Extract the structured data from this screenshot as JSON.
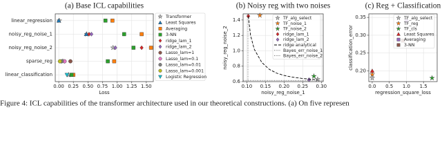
{
  "chart_data": [
    {
      "type": "scatter",
      "title": "(a) Base ICL capabilities",
      "xlabel": "Loss",
      "categories": [
        "linear_regression",
        "noisy_reg_noise_1",
        "noisy_reg_noise_2",
        "sparse_reg",
        "linear_classification"
      ],
      "xlim": [
        -0.06,
        1.62
      ],
      "xticks": [
        {
          "value": 0,
          "label": "0.00"
        },
        0.25,
        {
          "value": 0.5,
          "label": "0.50"
        },
        0.75,
        {
          "value": 1,
          "label": "1.00"
        },
        1.25,
        {
          "value": 1.5,
          "label": "1.50"
        }
      ],
      "grid": true,
      "legend": "outside right",
      "series": [
        {
          "name": "Transformer",
          "color": "#bbbbbb",
          "marker": "star",
          "values": [
            0.01,
            0.48,
            0.93,
            0.07,
            0.17
          ]
        },
        {
          "name": "Least Squares",
          "color": "#1f77b4",
          "marker": "triangle-up",
          "values": [
            0.0,
            0.47,
            null,
            null,
            0.21
          ]
        },
        {
          "name": "Averaging",
          "color": "#ff7f0e",
          "marker": "square",
          "values": [
            0.92,
            1.42,
            1.58,
            0.95,
            0.25
          ]
        },
        {
          "name": "3-NN",
          "color": "#2ca02c",
          "marker": "square",
          "values": [
            0.8,
            1.12,
            1.28,
            0.84,
            0.22
          ]
        },
        {
          "name": "ridge_lam_1",
          "color": "#d62728",
          "marker": "diamond",
          "values": [
            null,
            0.52,
            1.42,
            null,
            null
          ]
        },
        {
          "name": "ridge_lam_2",
          "color": "#9467bd",
          "marker": "diamond",
          "values": [
            null,
            0.56,
            0.97,
            null,
            null
          ]
        },
        {
          "name": "Lasso_lam=1",
          "color": "#8c564b",
          "marker": "circle",
          "values": [
            null,
            null,
            null,
            0.2,
            null
          ]
        },
        {
          "name": "Lasso_lam=0.1",
          "color": "#e377c2",
          "marker": "circle",
          "values": [
            null,
            null,
            null,
            0.1,
            null
          ]
        },
        {
          "name": "Lasso_lam=0.01",
          "color": "#7f7f7f",
          "marker": "circle",
          "values": [
            null,
            null,
            null,
            0.05,
            null
          ]
        },
        {
          "name": "Lasso_lam=0.001",
          "color": "#bcbd22",
          "marker": "circle",
          "values": [
            null,
            null,
            null,
            0.02,
            null
          ]
        },
        {
          "name": "Logistic Regression",
          "color": "#17becf",
          "marker": "triangle-down",
          "values": [
            null,
            null,
            null,
            null,
            0.14
          ]
        }
      ]
    },
    {
      "type": "scatter",
      "title": "(b) Noisy reg with two noises",
      "xlabel": "noisy_reg_noise_1",
      "ylabel": "noisy_reg_noise_2",
      "xlim": [
        0.09,
        0.305
      ],
      "xticks": [
        {
          "value": 0.1,
          "label": "0.10"
        },
        0.15,
        {
          "value": 0.2,
          "label": "0.20"
        },
        0.25,
        {
          "value": 0.3,
          "label": "0.30"
        }
      ],
      "ylim": [
        0.6,
        1.48
      ],
      "yticks": [
        0.6,
        0.8,
        {
          "value": 1,
          "label": "1.0"
        },
        1.2,
        1.4
      ],
      "grid": true,
      "legend": "upper right",
      "series": [
        {
          "name": "TF_alg_select",
          "color": "#bbbbbb",
          "marker": "star",
          "x": [
            0.29
          ],
          "y": [
            0.63
          ]
        },
        {
          "name": "TF_noise_1",
          "color": "#ff7f0e",
          "marker": "star",
          "x": [
            0.135
          ],
          "y": [
            1.46
          ]
        },
        {
          "name": "TF_noise_2",
          "color": "#2ca02c",
          "marker": "star",
          "x": [
            0.28
          ],
          "y": [
            0.67
          ]
        },
        {
          "name": "ridge_lam_1",
          "color": "#d62728",
          "marker": "diamond",
          "x": [
            0.104
          ],
          "y": [
            1.45
          ]
        },
        {
          "name": "ridge_lam_2",
          "color": "#9467bd",
          "marker": "diamond",
          "x": [
            0.267
          ],
          "y": [
            0.625
          ]
        },
        {
          "name": "ridge analytical",
          "color": "#000000",
          "linestyle": "dashed",
          "x": [
            0.104,
            0.11,
            0.12,
            0.14,
            0.16,
            0.18,
            0.2,
            0.22,
            0.25,
            0.29
          ],
          "y": [
            1.45,
            1.2,
            1.02,
            0.85,
            0.76,
            0.71,
            0.68,
            0.66,
            0.64,
            0.625
          ]
        },
        {
          "name": "Bayes_err_noise_1",
          "color": "#555555",
          "linestyle": "dotted",
          "xline": 0.103
        },
        {
          "name": "Bayes_err_noise_2",
          "color": "#555555",
          "linestyle": "dotted",
          "yline": 0.615
        }
      ]
    },
    {
      "type": "scatter",
      "title": "(c) Reg + Classification",
      "xlabel": "regression_square_loss",
      "ylabel": "classification_error",
      "xlim": [
        -0.1,
        1.9
      ],
      "xticks": [
        {
          "value": 0,
          "label": "0.0"
        },
        0.5,
        {
          "value": 1,
          "label": "1.0"
        },
        1.5
      ],
      "ylim": [
        0.17,
        0.36
      ],
      "yticks": [
        {
          "value": 0.2,
          "label": "0.20"
        },
        0.25,
        {
          "value": 0.3,
          "label": "0.30"
        },
        0.35
      ],
      "grid": true,
      "legend": "upper right",
      "series": [
        {
          "name": "TF_alg_select",
          "color": "#bbbbbb",
          "marker": "star",
          "x": [
            0.0
          ],
          "y": [
            0.18
          ]
        },
        {
          "name": "TF_reg",
          "color": "#ff7f0e",
          "marker": "star",
          "x": [
            0.0
          ],
          "y": [
            0.19
          ]
        },
        {
          "name": "TF_cls",
          "color": "#2ca02c",
          "marker": "star",
          "x": [
            1.75
          ],
          "y": [
            0.18
          ]
        },
        {
          "name": "Least Squares",
          "color": "#d62728",
          "marker": "triangle-up",
          "x": [
            0.0
          ],
          "y": [
            0.2
          ]
        },
        {
          "name": "Averaging",
          "color": "#9467bd",
          "marker": "square",
          "x": [
            1.0
          ],
          "y": [
            0.34
          ]
        },
        {
          "name": "3-NN",
          "color": "#8c564b",
          "marker": "square",
          "x": [
            0.9
          ],
          "y": [
            0.285
          ]
        }
      ]
    }
  ],
  "caption": "Figure 4: ICL capabilities of the transformer architecture used in our theoretical constructions. (a) On five represen"
}
